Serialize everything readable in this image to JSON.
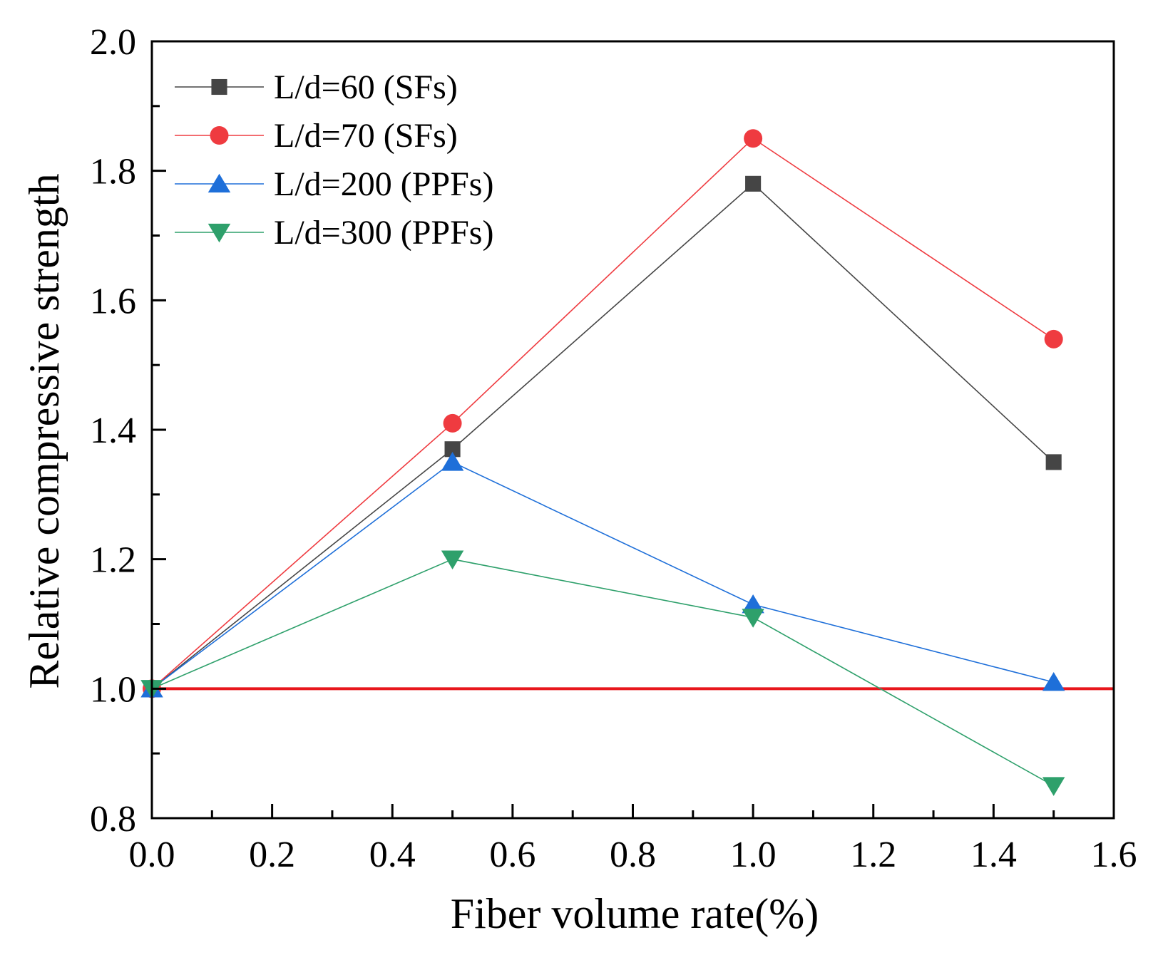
{
  "chart_data": {
    "type": "line",
    "title": "",
    "xlabel": "Fiber volume rate(%)",
    "ylabel": "Relative compressive strength",
    "xlim": [
      0.0,
      1.6
    ],
    "ylim": [
      0.8,
      2.0
    ],
    "x_ticks": [
      "0.0",
      "0.2",
      "0.4",
      "0.6",
      "0.8",
      "1.0",
      "1.2",
      "1.4",
      "1.6"
    ],
    "y_ticks": [
      "0.8",
      "1.0",
      "1.2",
      "1.4",
      "1.6",
      "1.8",
      "2.0"
    ],
    "grid": false,
    "legend_position": "top-left",
    "reference_line": {
      "y": 1.0,
      "color": "#e8161c"
    },
    "series": [
      {
        "name": "L/d=60 (SFs)",
        "marker": "square",
        "color": "#454545",
        "x": [
          0,
          0.5,
          1.0,
          1.5
        ],
        "values": [
          1.0,
          1.37,
          1.78,
          1.35
        ]
      },
      {
        "name": "L/d=70 (SFs)",
        "marker": "circle",
        "color": "#ef3b40",
        "x": [
          0,
          0.5,
          1.0,
          1.5
        ],
        "values": [
          1.0,
          1.41,
          1.85,
          1.54
        ]
      },
      {
        "name": "L/d=200 (PPFs)",
        "marker": "triangle-up",
        "color": "#1e6fd9",
        "x": [
          0,
          0.5,
          1.0,
          1.5
        ],
        "values": [
          1.0,
          1.35,
          1.13,
          1.01
        ]
      },
      {
        "name": "L/d=300 (PPFs)",
        "marker": "triangle-down",
        "color": "#2ea06b",
        "x": [
          0,
          0.5,
          1.0,
          1.5
        ],
        "values": [
          1.0,
          1.2,
          1.11,
          0.85
        ]
      }
    ]
  }
}
